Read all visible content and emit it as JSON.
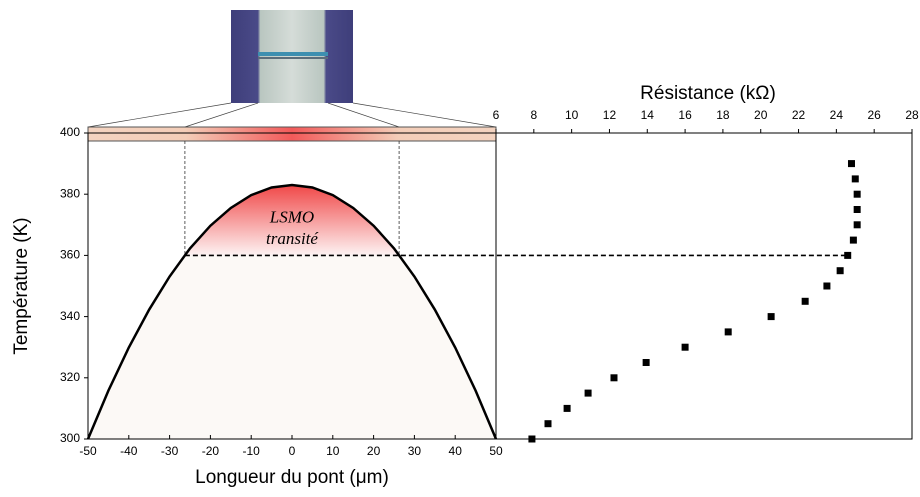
{
  "chart_data": [
    {
      "type": "line",
      "x_label": "Longueur du pont (μm)",
      "y_label": "Température (K)",
      "annotations": [
        "LSMO",
        "transité"
      ],
      "x": [
        -50,
        -45,
        -40,
        -35,
        -30,
        -25,
        -20,
        -15,
        -10,
        -5,
        0,
        5,
        10,
        15,
        20,
        25,
        30,
        35,
        40,
        45,
        50
      ],
      "values": [
        300,
        315.8,
        329.9,
        342.3,
        353.1,
        362.3,
        369.7,
        375.5,
        379.7,
        382.2,
        383,
        382.2,
        379.7,
        375.5,
        369.7,
        362.3,
        353.1,
        342.3,
        329.9,
        315.8,
        300
      ],
      "color": "#000000",
      "threshold": 360,
      "xlim": [
        -50,
        50
      ],
      "xticks": [
        -50,
        -40,
        -30,
        -20,
        -10,
        0,
        10,
        20,
        30,
        40,
        50
      ],
      "ylim": [
        300,
        400
      ],
      "yticks": [
        300,
        320,
        340,
        360,
        380,
        400
      ]
    },
    {
      "type": "scatter",
      "x_label": "Résistance (kΩ)",
      "x": [
        7.9,
        8.75,
        9.76,
        10.87,
        12.24,
        13.94,
        16.0,
        18.28,
        20.55,
        22.35,
        23.5,
        24.2,
        24.6,
        24.9,
        25.1,
        25.1,
        25.1,
        25.0,
        24.8
      ],
      "values": [
        300,
        305,
        310,
        315,
        320,
        325,
        330,
        335,
        340,
        345,
        350,
        355,
        360,
        365,
        370,
        375,
        380,
        385,
        390
      ],
      "color": "#000000",
      "xlim": [
        6,
        28
      ],
      "xticks": [
        6,
        8,
        10,
        12,
        14,
        16,
        18,
        20,
        22,
        24,
        26,
        28
      ],
      "ylim": [
        300,
        400
      ]
    }
  ]
}
